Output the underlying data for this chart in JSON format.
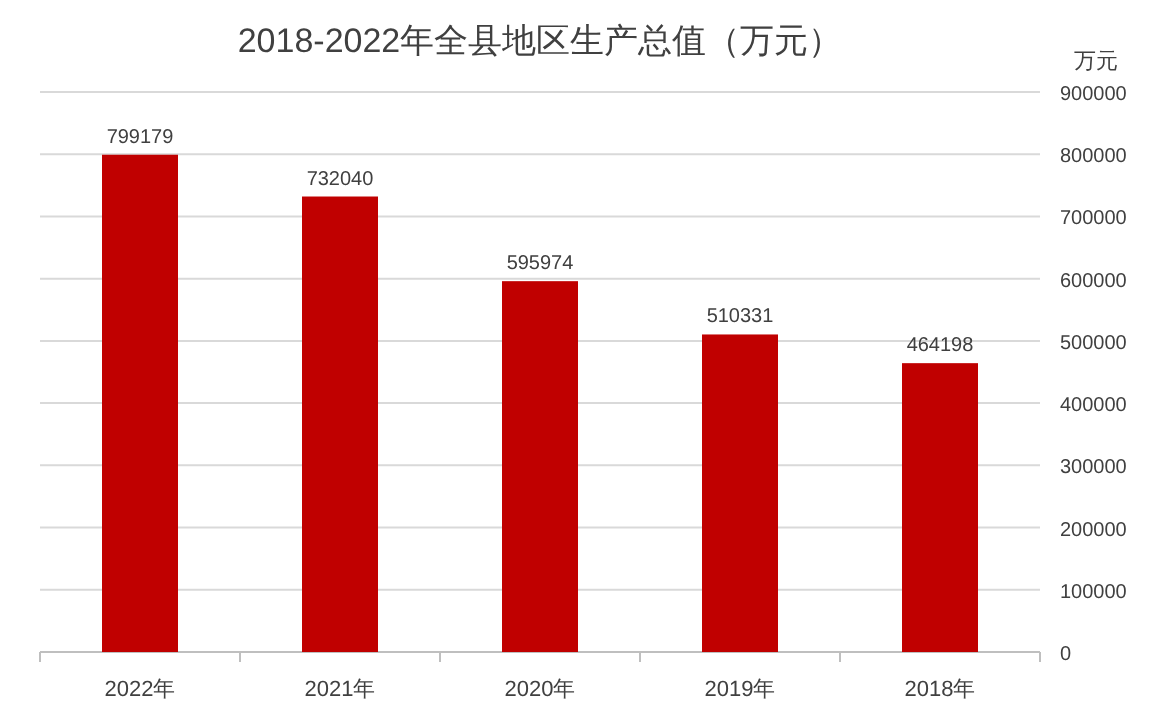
{
  "chart_data": {
    "type": "bar",
    "title": "2018-2022年全县地区生产总值（万元）",
    "ylabel": "万元",
    "categories": [
      "2022年",
      "2021年",
      "2020年",
      "2019年",
      "2018年"
    ],
    "values": [
      799179,
      732040,
      595974,
      510331,
      464198
    ],
    "color": "#c00000",
    "ylim": [
      0,
      900000
    ],
    "yticks": [
      0,
      100000,
      200000,
      300000,
      400000,
      500000,
      600000,
      700000,
      800000,
      900000
    ],
    "grid": "y",
    "data_labels": true
  }
}
